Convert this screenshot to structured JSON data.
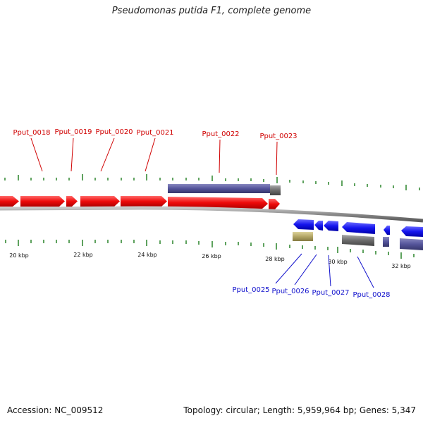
{
  "title": "Pseudomonas putida F1, complete genome",
  "footer": {
    "accession": "Accession: NC_009512",
    "topology": "Topology: circular; Length: 5,959,964 bp; Genes: 5,347"
  },
  "colors": {
    "forward_gene": "#ff1010",
    "reverse_gene": "#1010ee",
    "forward_label": "#d00000",
    "reverse_label": "#1010cc",
    "operon_purple": "#5a5a9c",
    "feature_gray": "#6e6e6e",
    "feature_tan": "#b5a86a",
    "backbone": "#8a8a8a",
    "tick_green": "#1a7a1a"
  },
  "scale": {
    "ticks": [
      {
        "label": "20 kbp"
      },
      {
        "label": "22 kbp"
      },
      {
        "label": "24 kbp"
      },
      {
        "label": "26 kbp"
      },
      {
        "label": "28 kbp"
      },
      {
        "label": "30 kbp"
      },
      {
        "label": "32 kbp"
      }
    ]
  },
  "genes": {
    "forward_labels": [
      "Pput_0018",
      "Pput_0019",
      "Pput_0020",
      "Pput_0021",
      "Pput_0022",
      "Pput_0023"
    ],
    "reverse_labels": [
      "Pput_0025",
      "Pput_0026",
      "Pput_0027",
      "Pput_0028"
    ]
  }
}
